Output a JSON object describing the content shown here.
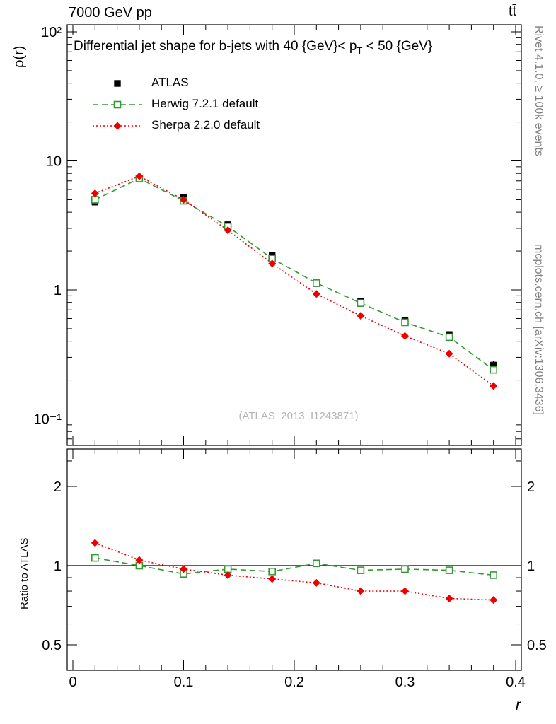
{
  "header": {
    "left": "7000 GeV pp",
    "right": "tt̄"
  },
  "title": {
    "pre": "Differential jet shape for b-jets with 40 {GeV}< p",
    "sub": "T",
    "post": " < 50 {GeV}"
  },
  "watermark": "(ATLAS_2013_I1243871)",
  "captions": {
    "right_top": "Rivet 4.1.0, ≥ 100k events",
    "right_bottom": "mcplots.cern.ch [arXiv:1306.3436]"
  },
  "axes": {
    "y_label": "ρ(r)",
    "x_label": "r",
    "ratio_y_label": "Ratio to ATLAS",
    "y_ticks": [
      {
        "v": 100,
        "label": "10²"
      },
      {
        "v": 10,
        "label": "10"
      },
      {
        "v": 1,
        "label": "1"
      },
      {
        "v": 0.1,
        "label": "10⁻¹"
      }
    ],
    "x_ticks": [
      {
        "v": 0,
        "label": "0"
      },
      {
        "v": 0.1,
        "label": "0.1"
      },
      {
        "v": 0.2,
        "label": "0.2"
      },
      {
        "v": 0.3,
        "label": "0.3"
      },
      {
        "v": 0.4,
        "label": "0.4"
      }
    ],
    "ratio_ticks": [
      {
        "v": 2,
        "label": "2"
      },
      {
        "v": 1,
        "label": "1"
      },
      {
        "v": 0.5,
        "label": "0.5"
      }
    ]
  },
  "chart_data": {
    "type": "line",
    "title": "Differential jet shape for b-jets with 40 {GeV}< p_T < 50 {GeV}",
    "xlabel": "r",
    "ylabel": "ρ(r)",
    "xlim": [
      0,
      0.4
    ],
    "ylog": true,
    "ylim": [
      0.1,
      100
    ],
    "legend_position": "top-left",
    "x": [
      0.02,
      0.06,
      0.1,
      0.14,
      0.18,
      0.22,
      0.26,
      0.3,
      0.34,
      0.38
    ],
    "series": [
      {
        "name": "ATLAS",
        "color": "#000000",
        "marker": "filled-square",
        "line": "none",
        "values": [
          4.8,
          7.3,
          5.2,
          3.2,
          1.85,
          1.12,
          0.82,
          0.58,
          0.45,
          0.26
        ],
        "errors": [
          0.25,
          0.3,
          0.2,
          0.12,
          0.08,
          0.05,
          0.04,
          0.03,
          0.025,
          0.02
        ]
      },
      {
        "name": "Herwig 7.2.1 default",
        "color": "#339933",
        "marker": "open-square",
        "line": "dashed",
        "values": [
          5.0,
          7.3,
          4.9,
          3.1,
          1.75,
          1.13,
          0.79,
          0.56,
          0.43,
          0.24
        ]
      },
      {
        "name": "Sherpa 2.2.0 default",
        "color": "#ee0000",
        "marker": "filled-diamond",
        "line": "dotted",
        "values": [
          5.6,
          7.6,
          5.0,
          2.9,
          1.6,
          0.93,
          0.63,
          0.44,
          0.32,
          0.18
        ]
      }
    ],
    "ratio_panel": {
      "ylabel": "Ratio to ATLAS",
      "ylog": true,
      "ylim": [
        0.4,
        2.77
      ],
      "reference": 1,
      "series": [
        {
          "name": "Herwig 7.2.1 default",
          "values": [
            1.07,
            1.0,
            0.93,
            0.97,
            0.95,
            1.02,
            0.96,
            0.97,
            0.96,
            0.92
          ]
        },
        {
          "name": "Sherpa 2.2.0 default",
          "values": [
            1.22,
            1.05,
            0.97,
            0.92,
            0.89,
            0.86,
            0.8,
            0.8,
            0.75,
            0.74
          ]
        }
      ]
    }
  }
}
